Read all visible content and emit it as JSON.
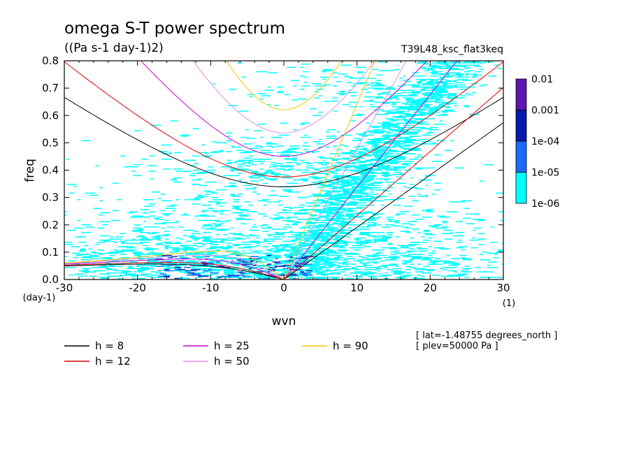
{
  "chart_data": {
    "type": "heatmap",
    "title": "omega S-T power spectrum",
    "units": "((Pa s-1 day-1)2)",
    "run_label": "T39L48_ksc_flat3keq",
    "xlabel": "wvn",
    "ylabel": "freq",
    "x_unit": "(1)",
    "y_unit": "(day-1)",
    "xlim": [
      -30,
      30
    ],
    "ylim": [
      0,
      0.8
    ],
    "x_ticks": [
      -30,
      -20,
      -10,
      0,
      10,
      20,
      30
    ],
    "x_tick_labels": [
      "-30",
      "-20",
      "-10",
      "0",
      "10",
      "20",
      "30"
    ],
    "y_ticks": [
      0,
      0.1,
      0.2,
      0.3,
      0.4,
      0.5,
      0.6,
      0.7,
      0.8
    ],
    "y_tick_labels": [
      "0.0",
      "0.1",
      "0.2",
      "0.3",
      "0.4",
      "0.5",
      "0.6",
      "0.7",
      "0.8"
    ],
    "colorbar": {
      "levels": [
        "0.01",
        "0.001",
        "1e-04",
        "1e-05",
        "1e-06"
      ],
      "colors": [
        "#5a18b0",
        "#0a1aa8",
        "#1a6af5",
        "#00ffff"
      ]
    },
    "dispersion_curves": [
      {
        "name": "h =  8",
        "h": 8,
        "color": "#000000"
      },
      {
        "name": "h = 12",
        "h": 12,
        "color": "#e00000"
      },
      {
        "name": "h = 25",
        "h": 25,
        "color": "#cc00cc"
      },
      {
        "name": "h = 50",
        "h": 50,
        "color": "#e090e0"
      },
      {
        "name": "h = 90",
        "h": 90,
        "color": "#f0c800"
      }
    ],
    "info": [
      "[ lat=-1.48755 degrees_north ]",
      "[ plev=50000 Pa ]"
    ]
  }
}
